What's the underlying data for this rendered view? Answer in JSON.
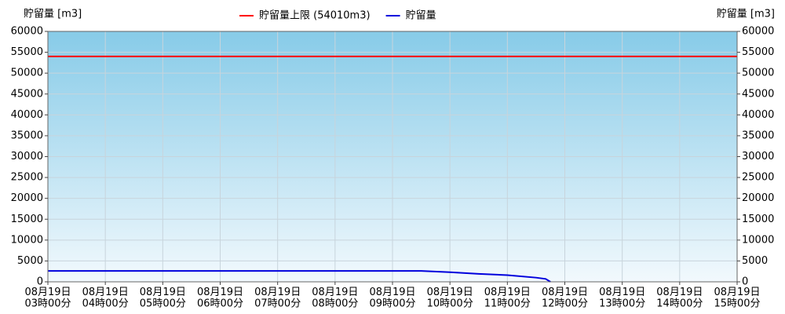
{
  "chart_data": {
    "type": "line",
    "ylabel": "貯留量 [m3]",
    "y2label": "貯留量 [m3]",
    "x": [
      "08-19 03:00",
      "08-19 09:30",
      "08-19 10:00",
      "08-19 10:30",
      "08-19 11:00",
      "08-19 11:30",
      "08-19 11:40",
      "08-19 11:45"
    ],
    "series": [
      {
        "name": "貯留量",
        "color": "#0000dd",
        "values": [
          2600,
          2600,
          2300,
          1900,
          1600,
          1000,
          700,
          0
        ]
      }
    ],
    "hlines": [
      {
        "name": "貯留量上限 (54010m3)",
        "color": "#ff0000",
        "value": 54010
      }
    ],
    "xlim": [
      "08-19 03:00",
      "08-19 15:00"
    ],
    "xticks": [
      {
        "value": "08-19 03:00",
        "label": "08月19日\n03時00分"
      },
      {
        "value": "08-19 04:00",
        "label": "08月19日\n04時00分"
      },
      {
        "value": "08-19 05:00",
        "label": "08月19日\n05時00分"
      },
      {
        "value": "08-19 06:00",
        "label": "08月19日\n06時00分"
      },
      {
        "value": "08-19 07:00",
        "label": "08月19日\n07時00分"
      },
      {
        "value": "08-19 08:00",
        "label": "08月19日\n08時00分"
      },
      {
        "value": "08-19 09:00",
        "label": "08月19日\n09時00分"
      },
      {
        "value": "08-19 10:00",
        "label": "08月19日\n10時00分"
      },
      {
        "value": "08-19 11:00",
        "label": "08月19日\n11時00分"
      },
      {
        "value": "08-19 12:00",
        "label": "08月19日\n12時00分"
      },
      {
        "value": "08-19 13:00",
        "label": "08月19日\n13時00分"
      },
      {
        "value": "08-19 14:00",
        "label": "08月19日\n14時00分"
      },
      {
        "value": "08-19 15:00",
        "label": "08月19日\n15時00分"
      }
    ],
    "ylim": [
      0,
      60000
    ],
    "yticks": [
      0,
      5000,
      10000,
      15000,
      20000,
      25000,
      30000,
      35000,
      40000,
      45000,
      50000,
      55000,
      60000
    ],
    "y2lim": [
      0,
      60000
    ],
    "y2ticks": [
      0,
      5000,
      10000,
      15000,
      20000,
      25000,
      30000,
      35000,
      40000,
      45000,
      50000,
      55000,
      60000
    ],
    "grid": true
  }
}
